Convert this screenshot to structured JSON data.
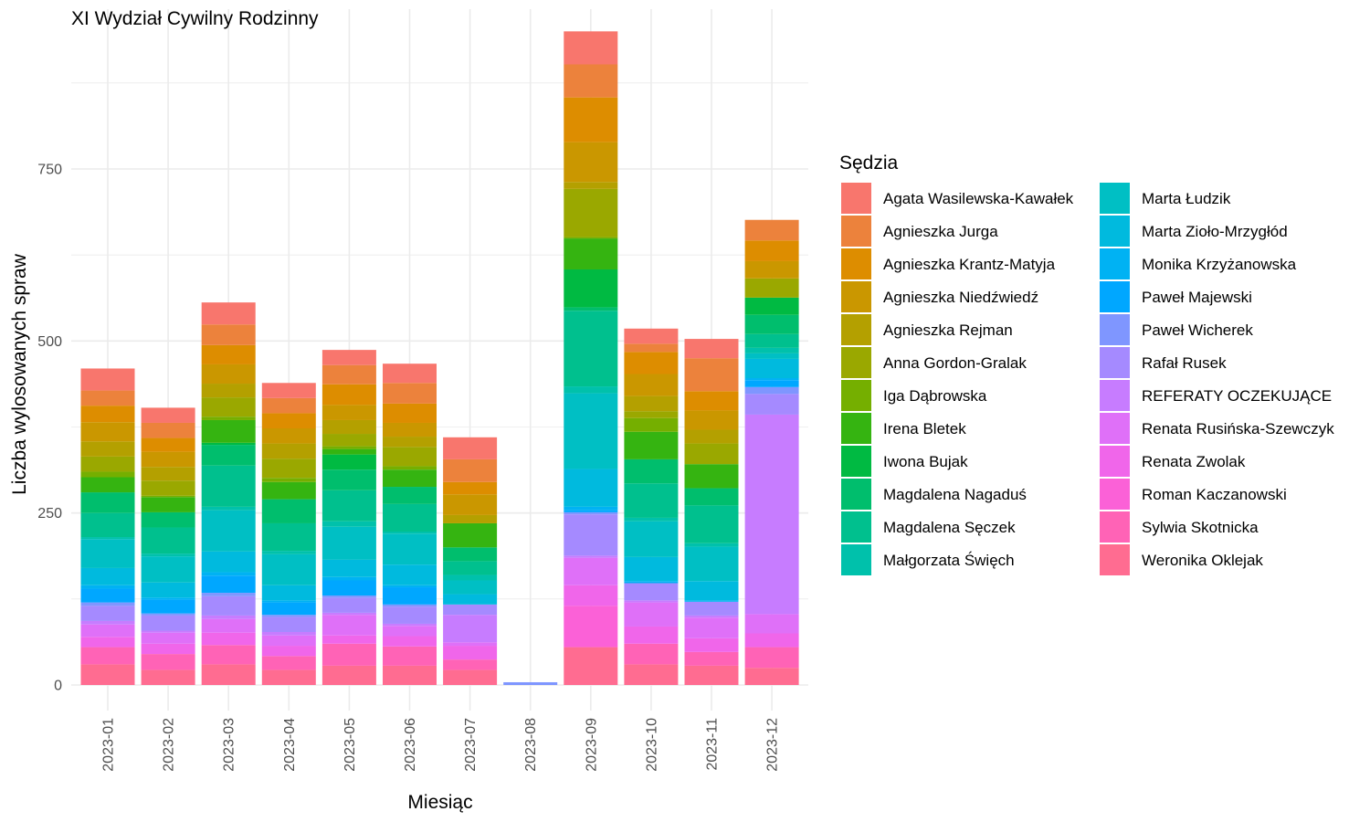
{
  "chart_data": {
    "type": "bar",
    "stacked": true,
    "title": "XI Wydział Cywilny Rodzinny",
    "xlabel": "Miesiąc",
    "ylabel": "Liczba wylosowanych spraw",
    "ylim": [
      0,
      980
    ],
    "yticks": [
      0,
      250,
      500,
      750
    ],
    "grid": true,
    "legend_title": "Sędzia",
    "legend_position": "right",
    "categories": [
      "2023-01",
      "2023-02",
      "2023-03",
      "2023-04",
      "2023-05",
      "2023-06",
      "2023-07",
      "2023-08",
      "2023-09",
      "2023-10",
      "2023-11",
      "2023-12"
    ],
    "series": [
      {
        "name": "Agata Wasilewska-Kawałek",
        "color": "#F8766D",
        "values": [
          32,
          22,
          32,
          22,
          22,
          28,
          32,
          0,
          48,
          22,
          28,
          0
        ]
      },
      {
        "name": "Agnieszka Jurga",
        "color": "#EC823C",
        "values": [
          22,
          22,
          30,
          22,
          28,
          30,
          33,
          0,
          48,
          12,
          48,
          30
        ]
      },
      {
        "name": "Agnieszka Krantz-Matyja",
        "color": "#DD8D00",
        "values": [
          24,
          20,
          28,
          22,
          30,
          28,
          18,
          0,
          65,
          32,
          28,
          30
        ]
      },
      {
        "name": "Agnieszka Niedźwiedź",
        "color": "#CA9700",
        "values": [
          28,
          22,
          28,
          22,
          22,
          20,
          30,
          0,
          58,
          32,
          28,
          25
        ]
      },
      {
        "name": "Agnieszka Rejman",
        "color": "#B4A000",
        "values": [
          22,
          20,
          20,
          22,
          20,
          15,
          12,
          0,
          10,
          22,
          20,
          0
        ]
      },
      {
        "name": "Anna Gordon-Gralak",
        "color": "#9AA800",
        "values": [
          22,
          22,
          28,
          28,
          18,
          28,
          0,
          0,
          70,
          10,
          30,
          28
        ]
      },
      {
        "name": "Iga Dąbrowska",
        "color": "#75AF00",
        "values": [
          8,
          2,
          5,
          6,
          4,
          5,
          0,
          0,
          2,
          20,
          0,
          0
        ]
      },
      {
        "name": "Irena Bletek",
        "color": "#35B411",
        "values": [
          22,
          22,
          33,
          25,
          8,
          25,
          35,
          0,
          45,
          40,
          35,
          0
        ]
      },
      {
        "name": "Iwona Bujak",
        "color": "#00BA42",
        "values": [
          0,
          0,
          3,
          0,
          22,
          0,
          0,
          0,
          55,
          0,
          0,
          25
        ]
      },
      {
        "name": "Magdalena Nagaduś",
        "color": "#00BE6D",
        "values": [
          30,
          22,
          30,
          35,
          30,
          25,
          20,
          0,
          5,
          35,
          25,
          28
        ]
      },
      {
        "name": "Magdalena Sęczek",
        "color": "#00C08E",
        "values": [
          35,
          38,
          60,
          40,
          45,
          40,
          20,
          0,
          110,
          50,
          55,
          20
        ]
      },
      {
        "name": "Małgorzata Święch",
        "color": "#00C1AB",
        "values": [
          3,
          4,
          5,
          5,
          8,
          3,
          8,
          0,
          10,
          5,
          5,
          8
        ]
      },
      {
        "name": "Marta Łudzik",
        "color": "#00BFC4",
        "values": [
          42,
          38,
          60,
          45,
          48,
          45,
          20,
          0,
          110,
          52,
          50,
          8
        ]
      },
      {
        "name": "Marta Zioło-Mrzygłód",
        "color": "#00BADE",
        "values": [
          25,
          22,
          30,
          22,
          25,
          30,
          15,
          0,
          55,
          35,
          28,
          28
        ]
      },
      {
        "name": "Monika Krzyżanowska",
        "color": "#00B2F3",
        "values": [
          5,
          3,
          5,
          3,
          5,
          3,
          0,
          0,
          5,
          3,
          2,
          3
        ]
      },
      {
        "name": "Paweł Majewski",
        "color": "#00A7FF",
        "values": [
          20,
          20,
          25,
          18,
          22,
          25,
          0,
          0,
          3,
          0,
          0,
          10
        ]
      },
      {
        "name": "Paweł Wicherek",
        "color": "#7F96FF",
        "values": [
          5,
          3,
          5,
          3,
          3,
          3,
          0,
          4,
          3,
          0,
          0,
          10
        ]
      },
      {
        "name": "Rafał Rusek",
        "color": "#A58AFF",
        "values": [
          22,
          22,
          28,
          22,
          22,
          25,
          15,
          0,
          60,
          25,
          20,
          30
        ]
      },
      {
        "name": "REFERATY OCZEKUJĄCE",
        "color": "#C77CFF",
        "values": [
          5,
          3,
          5,
          5,
          3,
          3,
          40,
          0,
          3,
          3,
          3,
          290
        ]
      },
      {
        "name": "Renata Rusińska-Szewczyk",
        "color": "#DF70F8",
        "values": [
          18,
          16,
          20,
          15,
          30,
          15,
          5,
          0,
          40,
          35,
          30,
          28
        ]
      },
      {
        "name": "Renata Zwolak",
        "color": "#F066EA",
        "values": [
          15,
          15,
          18,
          15,
          12,
          15,
          20,
          0,
          30,
          25,
          20,
          20
        ]
      },
      {
        "name": "Roman Kaczanowski",
        "color": "#FB61D7",
        "values": [
          0,
          0,
          0,
          0,
          0,
          0,
          0,
          0,
          60,
          0,
          0,
          0
        ]
      },
      {
        "name": "Sylwia Skotnicka",
        "color": "#FF63B6",
        "values": [
          25,
          23,
          28,
          20,
          32,
          28,
          15,
          0,
          0,
          30,
          20,
          30
        ]
      },
      {
        "name": "Weronika Oklejak",
        "color": "#FF6C91",
        "values": [
          30,
          22,
          30,
          22,
          28,
          28,
          22,
          0,
          55,
          30,
          28,
          25
        ]
      }
    ]
  }
}
